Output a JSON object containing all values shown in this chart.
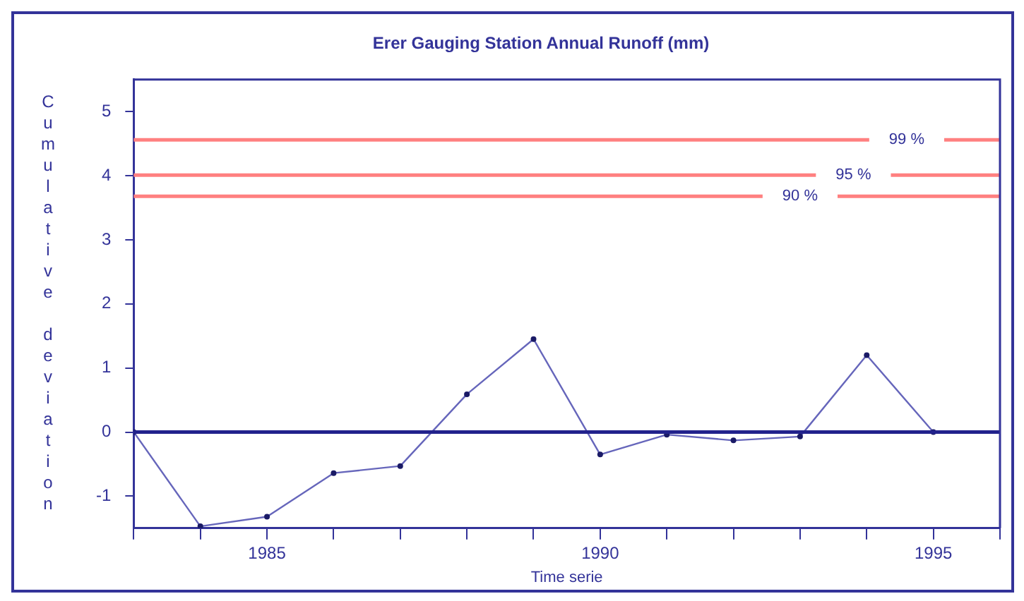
{
  "chart_data": {
    "type": "line",
    "title": "Erer Gauging Station Annual Runoff (mm)",
    "xlabel": "Time serie",
    "ylabel": "Cumulative deviation",
    "x": [
      1983,
      1984,
      1985,
      1986,
      1987,
      1988,
      1989,
      1990,
      1991,
      1992,
      1993,
      1994,
      1995
    ],
    "series": [
      {
        "color": "#6666bb",
        "values": [
          0,
          -1.47,
          -1.32,
          -0.64,
          -0.53,
          0.59,
          1.45,
          -0.35,
          -0.04,
          -0.13,
          -0.07,
          1.2,
          0
        ]
      }
    ],
    "xlim": [
      1983,
      1996
    ],
    "xticks": [
      {
        "value": 1983,
        "label": null
      },
      {
        "value": 1984,
        "label": null
      },
      1985,
      {
        "value": 1986,
        "label": null
      },
      {
        "value": 1987,
        "label": null
      },
      {
        "value": 1988,
        "label": null
      },
      {
        "value": 1989,
        "label": null
      },
      1990,
      {
        "value": 1991,
        "label": null
      },
      {
        "value": 1992,
        "label": null
      },
      {
        "value": 1993,
        "label": null
      },
      {
        "value": 1994,
        "label": null
      },
      1995,
      {
        "value": 1996,
        "label": null
      }
    ],
    "ylim": [
      -1.5,
      5.5
    ],
    "yticks": [
      -1,
      0,
      1,
      2,
      3,
      4,
      5
    ],
    "annotations": [
      {
        "text": "99 %",
        "x": 1994.6,
        "y": 4.56
      },
      {
        "text": "95 %",
        "x": 1993.8,
        "y": 4.01
      },
      {
        "text": "90 %",
        "x": 1993,
        "y": 3.68
      }
    ],
    "ref_lines": [
      {
        "axis": "y",
        "value": 4.56,
        "color": "#ff8080"
      },
      {
        "axis": "y",
        "value": 4.01,
        "color": "#ff8080"
      },
      {
        "axis": "y",
        "value": 3.68,
        "color": "#ff8080"
      },
      {
        "axis": "y",
        "value": 0,
        "color": "#22228c"
      }
    ],
    "grid": false,
    "legend": false,
    "marker": "circle",
    "line_style": "solid"
  }
}
